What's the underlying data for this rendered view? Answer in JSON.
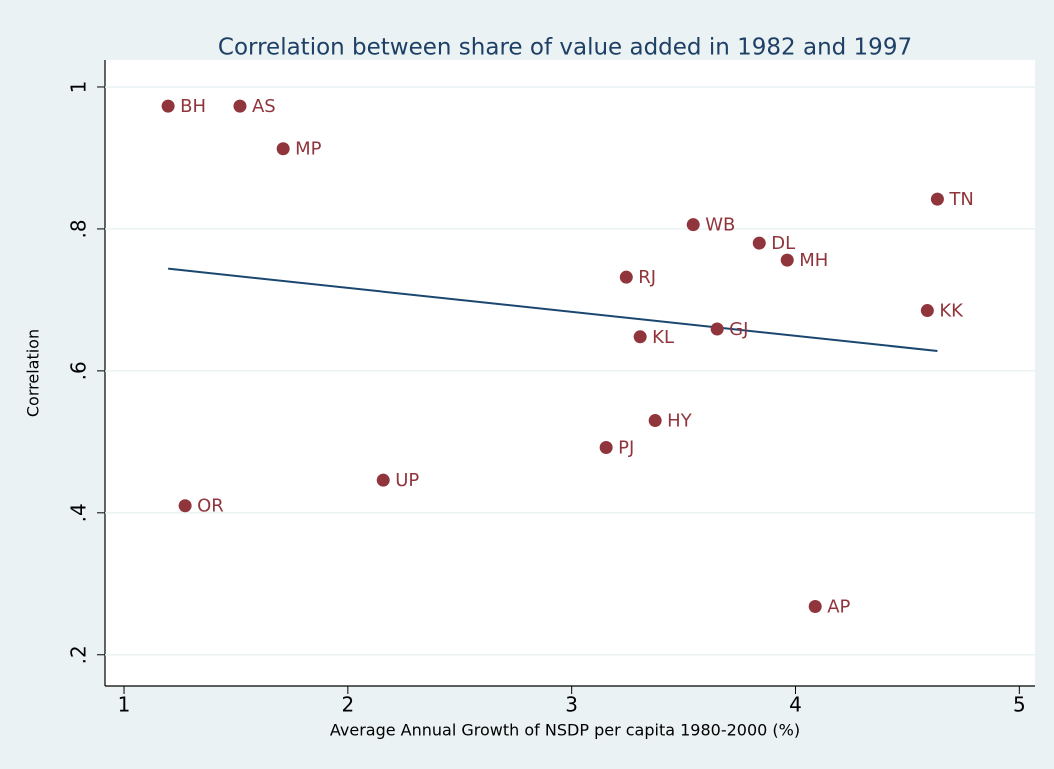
{
  "chart_data": {
    "type": "scatter",
    "title": "Correlation between share of value added in 1982 and 1997",
    "x_label": "Average Annual Growth of NSDP per capita 1980-2000 (%)",
    "y_label": "Correlation",
    "xlim": [
      0.915,
      5.07
    ],
    "ylim": [
      0.156,
      1.038
    ],
    "xticks": [
      1,
      2,
      3,
      4,
      5
    ],
    "yticks": [
      {
        "value": 0.2,
        "label": ".2"
      },
      {
        "value": 0.4,
        "label": ".4"
      },
      {
        "value": 0.6,
        "label": ".6"
      },
      {
        "value": 0.8,
        "label": ".8"
      },
      1
    ],
    "grid": true,
    "series": [
      {
        "color": "#90353b",
        "labels": [
          "BH",
          "AS",
          "MP",
          "TN",
          "WB",
          "DL",
          "MH",
          "RJ",
          "KK",
          "GJ",
          "KL",
          "HY",
          "PJ",
          "UP",
          "OR",
          "AP"
        ],
        "x": [
          1.197,
          1.518,
          1.711,
          4.634,
          3.543,
          3.838,
          3.963,
          3.244,
          4.589,
          3.65,
          3.306,
          3.373,
          3.154,
          2.158,
          1.273,
          4.088
        ],
        "values": [
          0.973,
          0.973,
          0.913,
          0.842,
          0.806,
          0.78,
          0.756,
          0.732,
          0.685,
          0.659,
          0.648,
          0.53,
          0.492,
          0.446,
          0.41,
          0.268
        ]
      }
    ],
    "fit_line": {
      "color": "#1a476f",
      "x": [
        1.197,
        4.634
      ],
      "values": [
        0.744,
        0.628
      ]
    }
  }
}
